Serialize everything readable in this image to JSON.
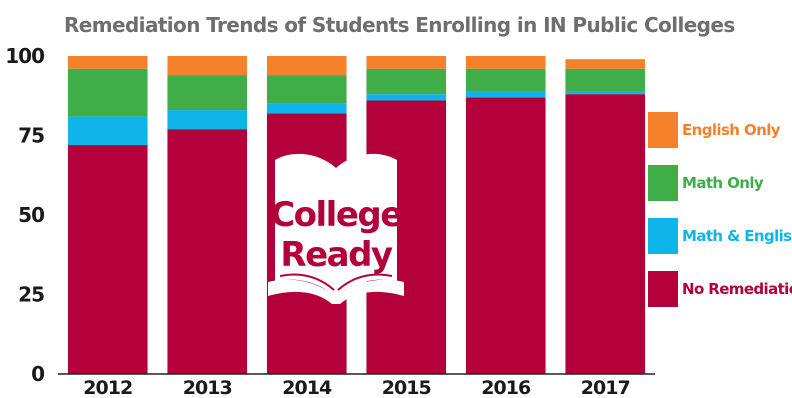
{
  "chart_data": {
    "type": "bar",
    "stacked": true,
    "title": "Remediation Trends of Students Enrolling in IN Public Colleges",
    "xlabel": "",
    "ylabel": "",
    "categories": [
      "2012",
      "2013",
      "2014",
      "2015",
      "2016",
      "2017"
    ],
    "ylim": [
      0,
      100
    ],
    "yticks": [
      0,
      25,
      50,
      75,
      100
    ],
    "grid": false,
    "legend_position": "right",
    "series": [
      {
        "name": "No Remediation",
        "color": "#b3003a",
        "values": [
          72,
          77,
          82,
          86,
          87,
          88
        ]
      },
      {
        "name": "Math & English",
        "color": "#0fb4ea",
        "values": [
          9,
          6,
          3,
          2,
          2,
          1
        ]
      },
      {
        "name": "Math Only",
        "color": "#3fae49",
        "values": [
          15,
          11,
          9,
          8,
          7,
          7
        ]
      },
      {
        "name": "English Only",
        "color": "#f5822b",
        "values": [
          4,
          6,
          6,
          4,
          4,
          3
        ]
      }
    ],
    "legend_order": [
      "English Only",
      "Math Only",
      "Math & English",
      "No Remediation"
    ],
    "annotation": {
      "line1": "College",
      "line2": "Ready",
      "icon": "open-book-icon"
    }
  }
}
